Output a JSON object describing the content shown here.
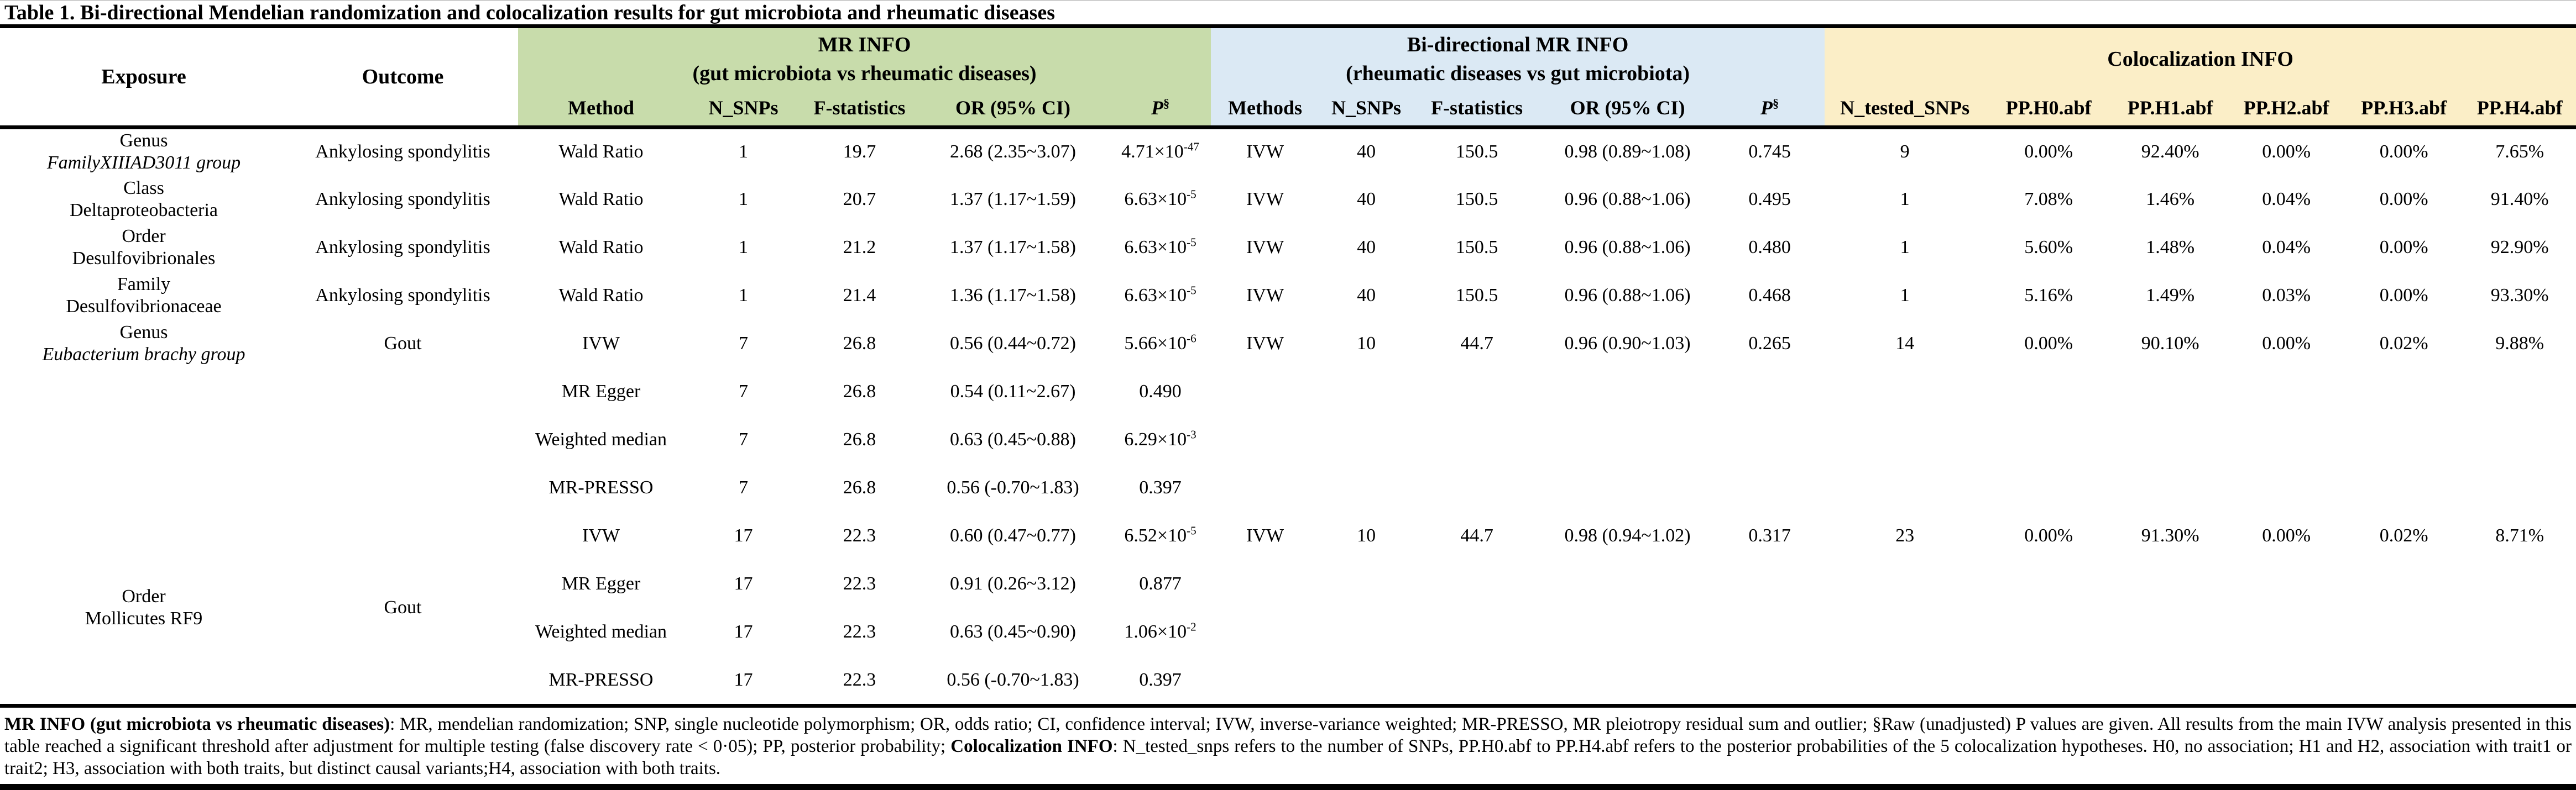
{
  "title": "Table 1. Bi-directional Mendelian randomization and colocalization results for gut microbiota and rheumatic diseases",
  "colors": {
    "mr_info_bg": "#c8dcab",
    "bi_mr_bg": "#dbe9f4",
    "coloc_bg": "#fbeec7",
    "rule": "#000000"
  },
  "table": {
    "base_headers": [
      {
        "label": "Exposure"
      },
      {
        "label": "Outcome"
      }
    ],
    "groups": [
      {
        "title_line1": "MR INFO",
        "title_line2": "(gut microbiota vs rheumatic diseases)",
        "columns": [
          "Method",
          "N_SNPs",
          "F-statistics",
          "OR (95% CI)",
          "P^{§}"
        ]
      },
      {
        "title_line1": "Bi-directional MR INFO",
        "title_line2": "(rheumatic diseases vs gut microbiota)",
        "columns": [
          "Methods",
          "N_SNPs",
          "F-statistics",
          "OR (95% CI)",
          "P^{§}"
        ]
      },
      {
        "title_line1": "Colocalization INFO",
        "title_line2": "",
        "columns": [
          "N_tested_SNPs",
          "PP.H0.abf",
          "PP.H1.abf",
          "PP.H2.abf",
          "PP.H3.abf",
          "PP.H4.abf"
        ]
      }
    ],
    "row_groups": [
      {
        "exposure_line1": "Genus",
        "exposure_line2": "FamilyXIIIAD3011 group",
        "exposure_line2_italic": true,
        "outcome": "Ankylosing spondylitis",
        "label_align": "middle",
        "rows": [
          {
            "mr": [
              "Wald Ratio",
              "1",
              "19.7",
              "2.68 (2.35~3.07)",
              "4.71×10^{-47}"
            ],
            "bi": [
              "IVW",
              "40",
              "150.5",
              "0.98 (0.89~1.08)",
              "0.745"
            ],
            "coloc": [
              "9",
              "0.00%",
              "92.40%",
              "0.00%",
              "0.00%",
              "7.65%"
            ]
          }
        ]
      },
      {
        "exposure_line1": "Class",
        "exposure_line2": "Deltaproteobacteria",
        "exposure_line2_italic": false,
        "outcome": "Ankylosing spondylitis",
        "label_align": "middle",
        "rows": [
          {
            "mr": [
              "Wald Ratio",
              "1",
              "20.7",
              "1.37 (1.17~1.59)",
              "6.63×10^{-5}"
            ],
            "bi": [
              "IVW",
              "40",
              "150.5",
              "0.96 (0.88~1.06)",
              "0.495"
            ],
            "coloc": [
              "1",
              "7.08%",
              "1.46%",
              "0.04%",
              "0.00%",
              "91.40%"
            ]
          }
        ]
      },
      {
        "exposure_line1": "Order",
        "exposure_line2": "Desulfovibrionales",
        "exposure_line2_italic": false,
        "outcome": "Ankylosing spondylitis",
        "label_align": "middle",
        "rows": [
          {
            "mr": [
              "Wald Ratio",
              "1",
              "21.2",
              "1.37 (1.17~1.58)",
              "6.63×10^{-5}"
            ],
            "bi": [
              "IVW",
              "40",
              "150.5",
              "0.96 (0.88~1.06)",
              "0.480"
            ],
            "coloc": [
              "1",
              "5.60%",
              "1.48%",
              "0.04%",
              "0.00%",
              "92.90%"
            ]
          }
        ]
      },
      {
        "exposure_line1": "Family",
        "exposure_line2": "Desulfovibrionaceae",
        "exposure_line2_italic": false,
        "outcome": "Ankylosing spondylitis",
        "label_align": "middle",
        "rows": [
          {
            "mr": [
              "Wald Ratio",
              "1",
              "21.4",
              "1.36 (1.17~1.58)",
              "6.63×10^{-5}"
            ],
            "bi": [
              "IVW",
              "40",
              "150.5",
              "0.96 (0.88~1.06)",
              "0.468"
            ],
            "coloc": [
              "1",
              "5.16%",
              "1.49%",
              "0.03%",
              "0.00%",
              "93.30%"
            ]
          }
        ]
      },
      {
        "exposure_line1": "Genus",
        "exposure_line2": "Eubacterium brachy group",
        "exposure_line2_italic": true,
        "outcome": "Gout",
        "label_align": "top",
        "rows": [
          {
            "mr": [
              "IVW",
              "7",
              "26.8",
              "0.56 (0.44~0.72)",
              "5.66×10^{-6}"
            ],
            "bi": [
              "IVW",
              "10",
              "44.7",
              "0.96 (0.90~1.03)",
              "0.265"
            ],
            "coloc": [
              "14",
              "0.00%",
              "90.10%",
              "0.00%",
              "0.02%",
              "9.88%"
            ]
          },
          {
            "mr": [
              "MR Egger",
              "7",
              "26.8",
              "0.54 (0.11~2.67)",
              "0.490"
            ],
            "bi": [],
            "coloc": []
          },
          {
            "mr": [
              "Weighted median",
              "7",
              "26.8",
              "0.63 (0.45~0.88)",
              "6.29×10^{-3}"
            ],
            "bi": [],
            "coloc": []
          },
          {
            "mr": [
              "MR-PRESSO",
              "7",
              "26.8",
              "0.56 (-0.70~1.83)",
              "0.397"
            ],
            "bi": [],
            "coloc": []
          }
        ]
      },
      {
        "exposure_line1": "Order",
        "exposure_line2": "Mollicutes RF9",
        "exposure_line2_italic": false,
        "outcome": "Gout",
        "label_align": "middle",
        "rows": [
          {
            "mr": [
              "IVW",
              "17",
              "22.3",
              "0.60 (0.47~0.77)",
              "6.52×10^{-5}"
            ],
            "bi": [
              "IVW",
              "10",
              "44.7",
              "0.98 (0.94~1.02)",
              "0.317"
            ],
            "coloc": [
              "23",
              "0.00%",
              "91.30%",
              "0.00%",
              "0.02%",
              "8.71%"
            ]
          },
          {
            "mr": [
              "MR Egger",
              "17",
              "22.3",
              "0.91 (0.26~3.12)",
              "0.877"
            ],
            "bi": [],
            "coloc": []
          },
          {
            "mr": [
              "Weighted median",
              "17",
              "22.3",
              "0.63 (0.45~0.90)",
              "1.06×10^{-2}"
            ],
            "bi": [],
            "coloc": []
          },
          {
            "mr": [
              "MR-PRESSO",
              "17",
              "22.3",
              "0.56 (-0.70~1.83)",
              "0.397"
            ],
            "bi": [],
            "coloc": []
          }
        ]
      }
    ]
  },
  "footnote": {
    "segments": [
      {
        "text": "MR INFO (gut microbiota vs rheumatic diseases)",
        "bold": true
      },
      {
        "text": ": MR, mendelian randomization; SNP, single nucleotide polymorphism; OR, odds ratio; CI, confidence interval; IVW, inverse-variance weighted; MR-PRESSO, MR pleiotropy residual sum and outlier; §Raw (unadjusted) P values are given. All results from the main IVW analysis presented in this table reached a significant threshold after adjustment for multiple testing (false discovery rate < 0·05); PP, posterior probability; ",
        "bold": false
      },
      {
        "text": "Colocalization INFO",
        "bold": true
      },
      {
        "text": ": N_tested_snps refers to the number of SNPs, PP.H0.abf to PP.H4.abf refers to the posterior probabilities of the 5 colocalization hypotheses. H0, no association; H1 and H2, association with trait1 or trait2; H3, association with both traits, but distinct causal variants;H4, association with both traits.",
        "bold": false
      }
    ]
  }
}
